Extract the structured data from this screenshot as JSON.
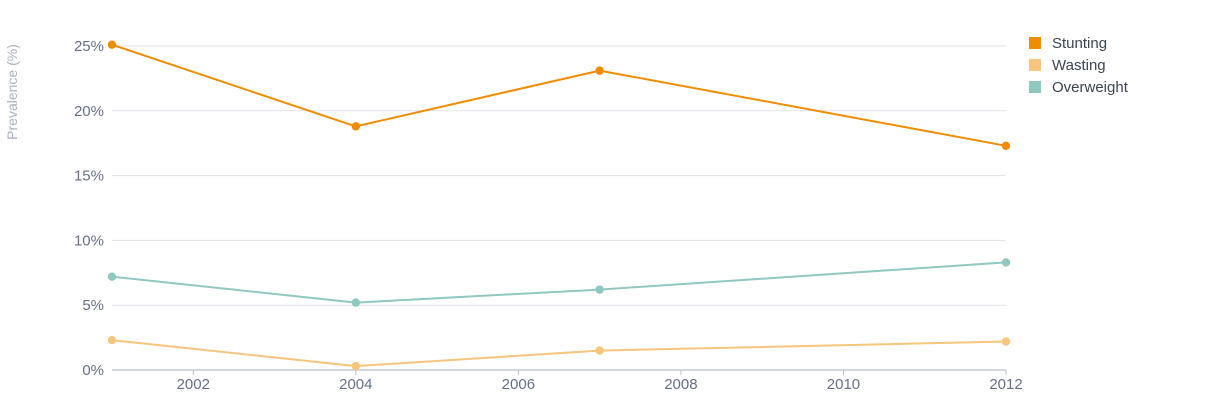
{
  "chart_data": {
    "type": "line",
    "ylabel": "Prevalence (%)",
    "xlim": [
      2001,
      2012
    ],
    "ylim": [
      0,
      25
    ],
    "x_ticks": [
      2002,
      2004,
      2006,
      2008,
      2010,
      2012
    ],
    "x_tick_labels": [
      "2002",
      "2004",
      "2006",
      "2008",
      "2010",
      "2012"
    ],
    "y_ticks": [
      0,
      5,
      10,
      15,
      20,
      25
    ],
    "y_tick_labels": [
      "0%",
      "5%",
      "10%",
      "15%",
      "20%",
      "25%"
    ],
    "grid": true,
    "legend_position": "top-right",
    "series": [
      {
        "name": "Stunting",
        "color": "#ef8c00",
        "x": [
          2001,
          2004,
          2007,
          2012
        ],
        "values": [
          25.1,
          18.8,
          23.1,
          17.3
        ]
      },
      {
        "name": "Wasting",
        "color": "#f7c57c",
        "x": [
          2001,
          2004,
          2007,
          2012
        ],
        "values": [
          2.3,
          0.3,
          1.5,
          2.2
        ]
      },
      {
        "name": "Overweight",
        "color": "#8fc8c1",
        "x": [
          2001,
          2004,
          2007,
          2012
        ],
        "values": [
          7.2,
          5.2,
          6.2,
          8.3
        ]
      }
    ]
  }
}
